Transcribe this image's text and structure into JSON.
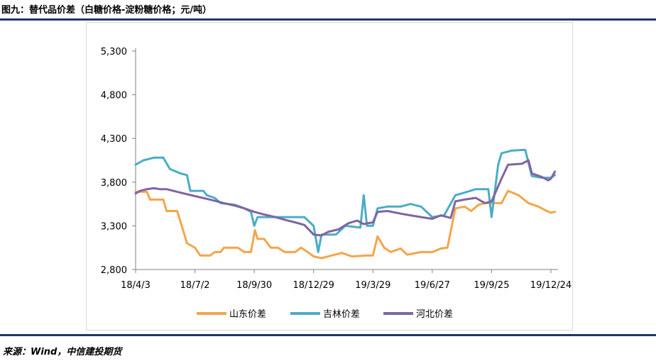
{
  "header": {
    "title": "图九：替代品价差（白糖价格-淀粉糖价格；元/吨）"
  },
  "footer": {
    "source": "来源：Wind，中信建投期货"
  },
  "colors": {
    "rule": "#1f3864",
    "frame": "#d9d9d9",
    "axis": "#808080",
    "shandong": "#f4a54a",
    "jilin": "#4bacc6",
    "hebei": "#8064a2"
  },
  "chart_data": {
    "type": "line",
    "title": "",
    "xlabel": "",
    "ylabel": "",
    "ylim": [
      2800,
      5300
    ],
    "yticks": [
      2800,
      3300,
      3800,
      4300,
      4800,
      5300
    ],
    "ytick_labels": [
      "2,800",
      "3,300",
      "3,800",
      "4,300",
      "4,800",
      "5,300"
    ],
    "xtick_labels": [
      "18/4/3",
      "18/7/2",
      "18/9/30",
      "18/12/29",
      "19/3/29",
      "19/6/27",
      "19/9/25",
      "19/12/24"
    ],
    "grid": false,
    "legend_position": "bottom",
    "series": [
      {
        "name": "山东价差",
        "color": "#f4a54a",
        "points": [
          [
            "18/4/3",
            3690
          ],
          [
            "18/4/20",
            3690
          ],
          [
            "18/4/25",
            3600
          ],
          [
            "18/5/15",
            3600
          ],
          [
            "18/5/20",
            3470
          ],
          [
            "18/6/5",
            3470
          ],
          [
            "18/6/12",
            3300
          ],
          [
            "18/6/20",
            3100
          ],
          [
            "18/7/2",
            3050
          ],
          [
            "18/7/10",
            2960
          ],
          [
            "18/7/25",
            2960
          ],
          [
            "18/8/1",
            3000
          ],
          [
            "18/8/10",
            3000
          ],
          [
            "18/8/15",
            3050
          ],
          [
            "18/9/5",
            3050
          ],
          [
            "18/9/15",
            3000
          ],
          [
            "18/9/25",
            3000
          ],
          [
            "18/10/1",
            3250
          ],
          [
            "18/10/5",
            3150
          ],
          [
            "18/10/15",
            3150
          ],
          [
            "18/10/25",
            3050
          ],
          [
            "18/11/5",
            3050
          ],
          [
            "18/11/15",
            3000
          ],
          [
            "18/12/1",
            3000
          ],
          [
            "18/12/10",
            3050
          ],
          [
            "18/12/20",
            3000
          ],
          [
            "18/12/29",
            2950
          ],
          [
            "19/1/10",
            2930
          ],
          [
            "19/1/25",
            2960
          ],
          [
            "19/2/10",
            2990
          ],
          [
            "19/2/25",
            2950
          ],
          [
            "19/3/20",
            2960
          ],
          [
            "19/3/29",
            2960
          ],
          [
            "19/4/5",
            3180
          ],
          [
            "19/4/15",
            3050
          ],
          [
            "19/4/25",
            3000
          ],
          [
            "19/5/10",
            3040
          ],
          [
            "19/5/20",
            2970
          ],
          [
            "19/6/10",
            3000
          ],
          [
            "19/6/27",
            3000
          ],
          [
            "19/7/10",
            3040
          ],
          [
            "19/7/20",
            3050
          ],
          [
            "19/8/1",
            3500
          ],
          [
            "19/8/15",
            3520
          ],
          [
            "19/8/25",
            3470
          ],
          [
            "19/9/5",
            3540
          ],
          [
            "19/9/15",
            3560
          ],
          [
            "19/9/25",
            3560
          ],
          [
            "19/10/10",
            3560
          ],
          [
            "19/10/20",
            3700
          ],
          [
            "19/11/5",
            3650
          ],
          [
            "19/11/20",
            3560
          ],
          [
            "19/12/5",
            3520
          ],
          [
            "19/12/15",
            3480
          ],
          [
            "19/12/24",
            3450
          ],
          [
            "19/12/30",
            3460
          ]
        ]
      },
      {
        "name": "吉林价差",
        "color": "#4bacc6",
        "points": [
          [
            "18/4/3",
            4000
          ],
          [
            "18/4/15",
            4050
          ],
          [
            "18/5/1",
            4080
          ],
          [
            "18/5/15",
            4080
          ],
          [
            "18/5/25",
            3950
          ],
          [
            "18/6/10",
            3900
          ],
          [
            "18/6/20",
            3880
          ],
          [
            "18/6/25",
            3700
          ],
          [
            "18/7/15",
            3700
          ],
          [
            "18/7/20",
            3650
          ],
          [
            "18/8/1",
            3620
          ],
          [
            "18/8/10",
            3560
          ],
          [
            "18/9/1",
            3540
          ],
          [
            "18/9/15",
            3500
          ],
          [
            "18/9/25",
            3460
          ],
          [
            "18/9/30",
            3300
          ],
          [
            "18/10/5",
            3400
          ],
          [
            "18/11/15",
            3400
          ],
          [
            "18/12/1",
            3400
          ],
          [
            "18/12/15",
            3400
          ],
          [
            "18/12/29",
            3300
          ],
          [
            "19/1/5",
            3000
          ],
          [
            "19/1/10",
            3200
          ],
          [
            "19/2/1",
            3200
          ],
          [
            "19/2/15",
            3300
          ],
          [
            "19/3/10",
            3280
          ],
          [
            "19/3/15",
            3650
          ],
          [
            "19/3/20",
            3300
          ],
          [
            "19/3/29",
            3300
          ],
          [
            "19/4/5",
            3500
          ],
          [
            "19/4/20",
            3520
          ],
          [
            "19/5/10",
            3520
          ],
          [
            "19/5/25",
            3550
          ],
          [
            "19/6/10",
            3520
          ],
          [
            "19/6/27",
            3400
          ],
          [
            "19/7/15",
            3420
          ],
          [
            "19/8/1",
            3650
          ],
          [
            "19/8/15",
            3680
          ],
          [
            "19/9/1",
            3720
          ],
          [
            "19/9/20",
            3720
          ],
          [
            "19/9/25",
            3400
          ],
          [
            "19/10/5",
            4000
          ],
          [
            "19/10/10",
            4130
          ],
          [
            "19/10/25",
            4160
          ],
          [
            "19/11/15",
            4170
          ],
          [
            "19/11/25",
            3870
          ],
          [
            "19/12/10",
            3850
          ],
          [
            "19/12/24",
            3850
          ],
          [
            "19/12/30",
            3880
          ]
        ]
      },
      {
        "name": "河北价差",
        "color": "#8064a2",
        "points": [
          [
            "18/4/3",
            3670
          ],
          [
            "18/4/10",
            3700
          ],
          [
            "18/4/20",
            3720
          ],
          [
            "18/5/1",
            3730
          ],
          [
            "18/5/10",
            3720
          ],
          [
            "18/5/20",
            3720
          ],
          [
            "18/6/10",
            3680
          ],
          [
            "18/7/2",
            3640
          ],
          [
            "18/7/25",
            3600
          ],
          [
            "18/8/15",
            3560
          ],
          [
            "18/9/1",
            3530
          ],
          [
            "18/9/15",
            3500
          ],
          [
            "18/9/30",
            3460
          ],
          [
            "18/10/15",
            3430
          ],
          [
            "18/11/1",
            3400
          ],
          [
            "18/11/15",
            3370
          ],
          [
            "18/12/1",
            3340
          ],
          [
            "18/12/15",
            3310
          ],
          [
            "18/12/29",
            3200
          ],
          [
            "19/1/10",
            3190
          ],
          [
            "19/1/20",
            3230
          ],
          [
            "19/2/5",
            3260
          ],
          [
            "19/2/20",
            3330
          ],
          [
            "19/3/5",
            3360
          ],
          [
            "19/3/15",
            3320
          ],
          [
            "19/3/29",
            3340
          ],
          [
            "19/4/5",
            3460
          ],
          [
            "19/4/20",
            3470
          ],
          [
            "19/5/10",
            3440
          ],
          [
            "19/5/25",
            3420
          ],
          [
            "19/6/10",
            3400
          ],
          [
            "19/6/27",
            3380
          ],
          [
            "19/7/10",
            3420
          ],
          [
            "19/7/25",
            3390
          ],
          [
            "19/8/1",
            3580
          ],
          [
            "19/8/15",
            3600
          ],
          [
            "19/9/1",
            3620
          ],
          [
            "19/9/15",
            3560
          ],
          [
            "19/9/25",
            3580
          ],
          [
            "19/10/10",
            3840
          ],
          [
            "19/10/20",
            4000
          ],
          [
            "19/11/10",
            4010
          ],
          [
            "19/11/20",
            4050
          ],
          [
            "19/11/25",
            3900
          ],
          [
            "19/12/10",
            3860
          ],
          [
            "19/12/20",
            3820
          ],
          [
            "19/12/24",
            3840
          ],
          [
            "19/12/30",
            3920
          ]
        ]
      }
    ]
  }
}
